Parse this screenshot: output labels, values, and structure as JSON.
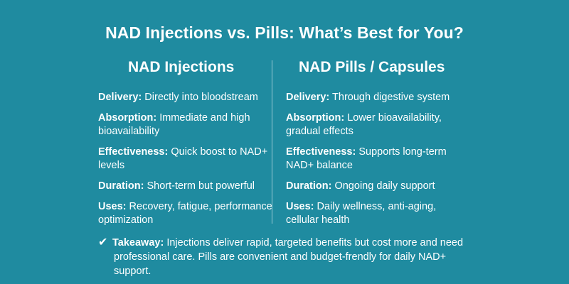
{
  "title": "NAD Injections vs. Pills: What’s Best for You?",
  "left": {
    "heading": "NAD Injections",
    "rows": [
      {
        "label": "Delivery:",
        "value": "Directly into bloodstream"
      },
      {
        "label": "Absorption:",
        "value": "Immediate and high bioavailability"
      },
      {
        "label": "Effectiveness:",
        "value": "Quick boost to NAD+ levels"
      },
      {
        "label": "Duration:",
        "value": "Short-term but powerful"
      },
      {
        "label": "Uses:",
        "value": "Recovery, fatigue, performance optimization"
      }
    ]
  },
  "right": {
    "heading": "NAD Pills / Capsules",
    "rows": [
      {
        "label": "Delivery:",
        "value": "Through digestive system"
      },
      {
        "label": "Absorption:",
        "value": "Lower bioavailability, gradual effects"
      },
      {
        "label": "Effectiveness:",
        "value": "Supports long-term NAD+ balance"
      },
      {
        "label": "Duration:",
        "value": "Ongoing daily support"
      },
      {
        "label": "Uses:",
        "value": "Daily wellness, anti-aging, cellular health"
      }
    ]
  },
  "takeaway": {
    "icon": "checkmark-icon",
    "label": "Takeaway:",
    "line1": "Injections deliver rapid, targeted benefits but cost more and need",
    "line2": "professional care. Pills are convenient and budget-frendly for daily NAD+ support."
  },
  "colors": {
    "background": "#1f8ba0",
    "text": "#ffffff"
  }
}
